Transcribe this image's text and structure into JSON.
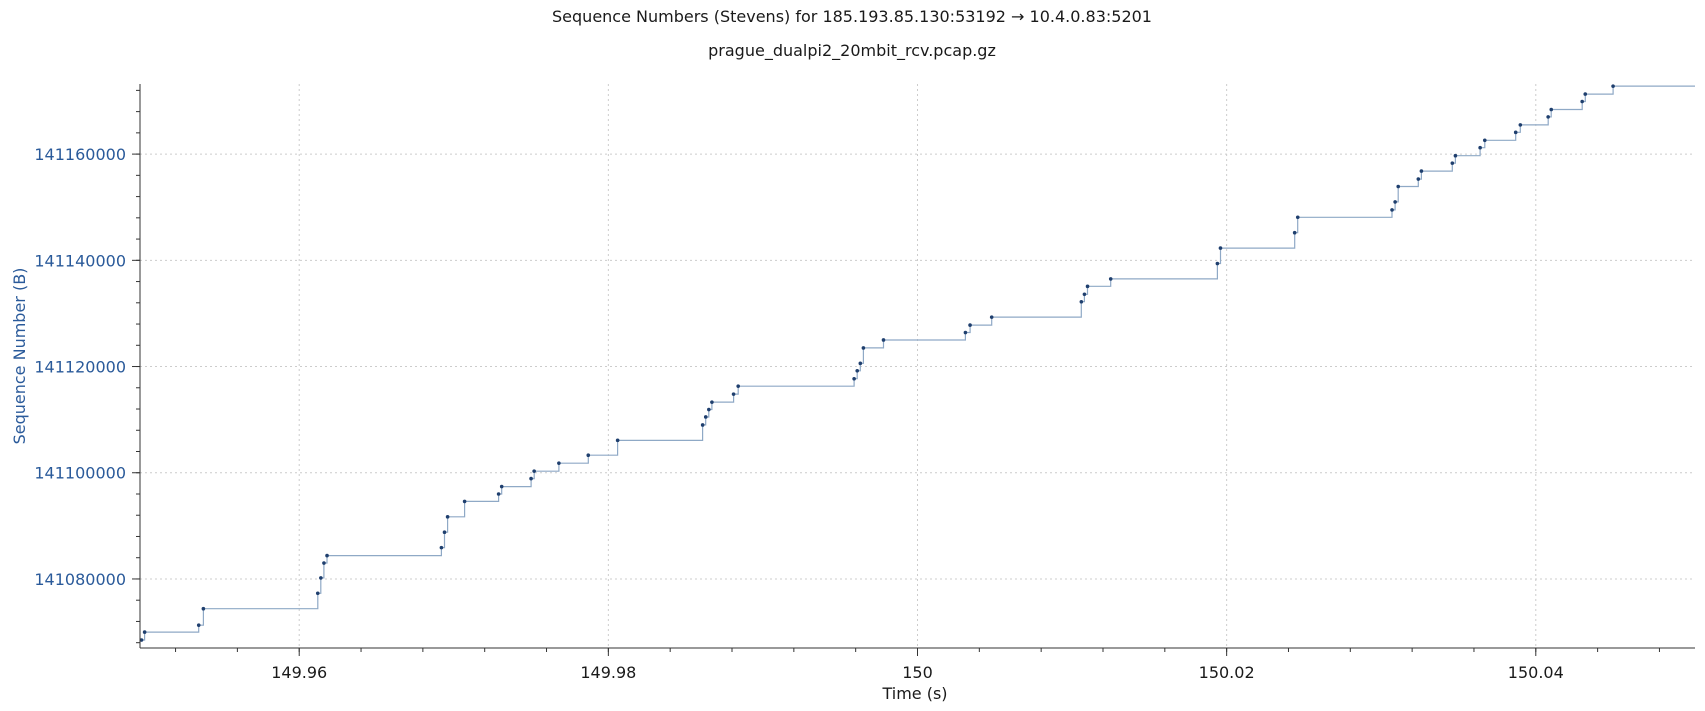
{
  "chart_data": {
    "type": "line",
    "title": "Sequence Numbers (Stevens) for 185.193.85.130:53192 → 10.4.0.83:5201",
    "subtitle": "prague_dualpi2_20mbit_rcv.pcap.gz",
    "xlabel": "Time (s)",
    "ylabel": "Sequence Number (B)",
    "xlim": [
      149.9497,
      150.0503
    ],
    "ylim": [
      141067000,
      141173200
    ],
    "x_ticks": [
      149.96,
      149.98,
      150,
      150.02,
      150.04
    ],
    "x_tick_labels": [
      "149.96",
      "149.98",
      "150",
      "150.02",
      "150.04"
    ],
    "y_ticks": [
      141080000,
      141100000,
      141120000,
      141140000,
      141160000
    ],
    "y_tick_labels": [
      "141080000",
      "141100000",
      "141120000",
      "141140000",
      "141160000"
    ],
    "grid": true,
    "step_plot": true,
    "colors": {
      "line": "#8fa9c6",
      "marker": "#1f3f6e",
      "axis_text": "#2a5a9a",
      "grid": "#cccccc"
    },
    "series": [
      {
        "x": [
          149.9498,
          149.95,
          149.9535,
          149.9538,
          149.9612,
          149.9614,
          149.9616,
          149.9618,
          149.9692,
          149.9694,
          149.9696,
          149.9707,
          149.9729,
          149.9731,
          149.975,
          149.9752,
          149.9768,
          149.9787,
          149.9806,
          149.9861,
          149.9863,
          149.9865,
          149.9867,
          149.9881,
          149.9884,
          149.9959,
          149.9961,
          149.9963,
          149.9965,
          149.9978,
          150.0031,
          150.0034,
          150.0048,
          150.0106,
          150.0108,
          150.011,
          150.0125,
          150.0194,
          150.0196,
          150.0244,
          150.0246,
          150.0307,
          150.0309,
          150.0311,
          150.0324,
          150.0326,
          150.0346,
          150.0348,
          150.0364,
          150.0367,
          150.0387,
          150.039,
          150.0408,
          150.041,
          150.043,
          150.0432,
          150.045
        ],
        "y": [
          141068500,
          141070000,
          141071300,
          141074400,
          141077300,
          141080200,
          141083000,
          141084400,
          141085900,
          141088800,
          141091700,
          141094600,
          141096000,
          141097400,
          141098900,
          141100300,
          141101800,
          141103300,
          141106100,
          141109000,
          141110500,
          141111900,
          141113300,
          141114800,
          141116300,
          141117700,
          141119200,
          141120600,
          141123500,
          141125000,
          141126400,
          141127800,
          141129300,
          141132200,
          141133600,
          141135100,
          141136500,
          141139400,
          141142300,
          141145200,
          141148100,
          141149500,
          141151000,
          141153900,
          141155300,
          141156800,
          141158300,
          141159700,
          141161200,
          141162600,
          141164100,
          141165500,
          141167000,
          141168400,
          141169900,
          141171300,
          141172800
        ]
      }
    ]
  }
}
